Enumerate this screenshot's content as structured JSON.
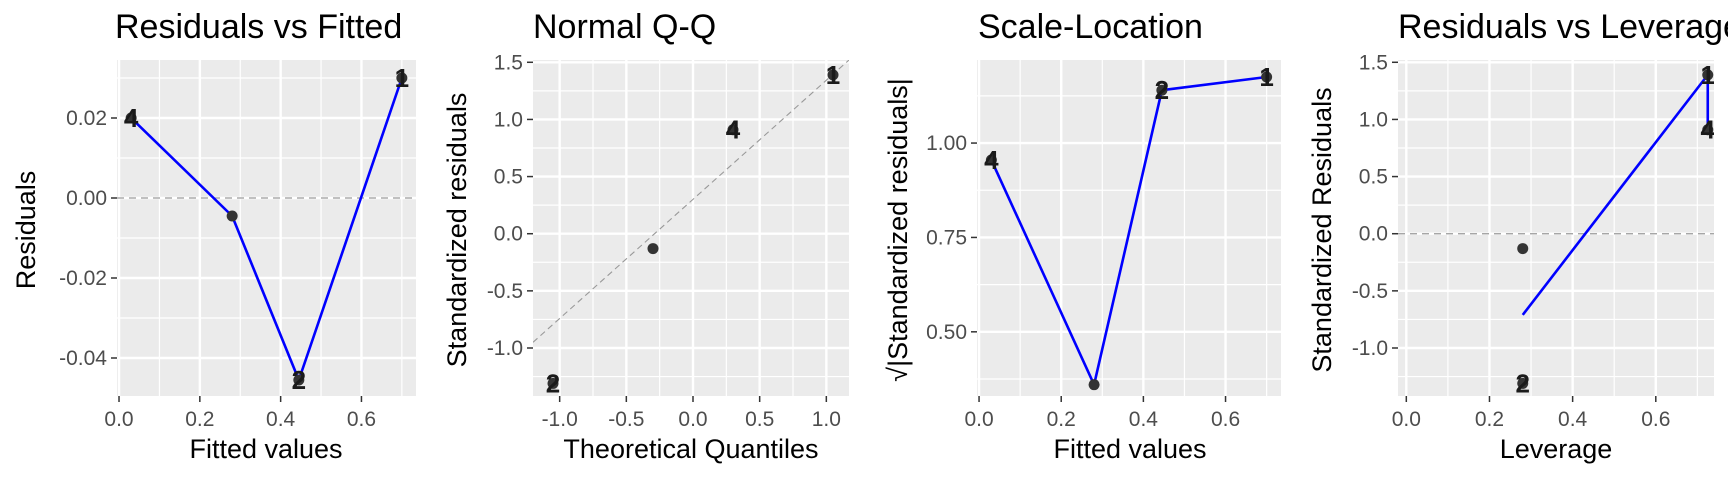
{
  "chart_data": [
    {
      "type": "scatter",
      "title": "Residuals vs Fitted",
      "xlabel": "Fitted values",
      "ylabel": "Residuals",
      "xlim": [
        -0.005,
        0.735
      ],
      "ylim": [
        -0.0495,
        0.0345
      ],
      "xticks": [
        0.0,
        0.2,
        0.4,
        0.6
      ],
      "xtick_labels": [
        "0.0",
        "0.2",
        "0.4",
        "0.6"
      ],
      "yticks": [
        -0.04,
        -0.02,
        0.0,
        0.02
      ],
      "ytick_labels": [
        "-0.04",
        "-0.02",
        "0.00",
        "0.02"
      ],
      "points": [
        {
          "label": "4",
          "x": 0.03,
          "y": 0.02
        },
        {
          "label": "",
          "x": 0.28,
          "y": -0.0045
        },
        {
          "label": "2",
          "x": 0.445,
          "y": -0.0455
        },
        {
          "label": "1",
          "x": 0.7,
          "y": 0.03
        }
      ],
      "smooth_line": {
        "color": "#0000ff",
        "points": [
          [
            0.03,
            0.02
          ],
          [
            0.28,
            -0.0045
          ],
          [
            0.445,
            -0.0455
          ],
          [
            0.7,
            0.03
          ]
        ]
      },
      "ref_line": {
        "kind": "h",
        "value": 0.0
      },
      "grid": true
    },
    {
      "type": "scatter",
      "title": "Normal Q-Q",
      "xlabel": "Theoretical Quantiles",
      "ylabel": "Standardized residuals",
      "xlim": [
        -1.2,
        1.17
      ],
      "ylim": [
        -1.42,
        1.52
      ],
      "xticks": [
        -1.0,
        -0.5,
        0.0,
        0.5,
        1.0
      ],
      "xtick_labels": [
        "-1.0",
        "-0.5",
        "0.0",
        "0.5",
        "1.0"
      ],
      "yticks": [
        -1.0,
        -0.5,
        0.0,
        0.5,
        1.0,
        1.5
      ],
      "ytick_labels": [
        "-1.0",
        "-0.5",
        "0.0",
        "0.5",
        "1.0",
        "1.5"
      ],
      "points": [
        {
          "label": "2",
          "x": -1.05,
          "y": -1.31
        },
        {
          "label": "",
          "x": -0.3,
          "y": -0.13
        },
        {
          "label": "4",
          "x": 0.3,
          "y": 0.91
        },
        {
          "label": "1",
          "x": 1.05,
          "y": 1.39
        }
      ],
      "ref_line": {
        "kind": "diag",
        "x0": -1.2,
        "y0": -0.95,
        "x1": 1.17,
        "y1": 1.52,
        "color": "#999999"
      },
      "grid": true
    },
    {
      "type": "scatter",
      "title": "Scale-Location",
      "xlabel": "Fitted values",
      "ylabel": "√|Standardized residuals|",
      "xlim": [
        -0.005,
        0.735
      ],
      "ylim": [
        0.33,
        1.22
      ],
      "xticks": [
        0.0,
        0.2,
        0.4,
        0.6
      ],
      "xtick_labels": [
        "0.0",
        "0.2",
        "0.4",
        "0.6"
      ],
      "yticks": [
        0.5,
        0.75,
        1.0
      ],
      "ytick_labels": [
        "0.50",
        "0.75",
        "1.00"
      ],
      "points": [
        {
          "label": "4",
          "x": 0.03,
          "y": 0.955
        },
        {
          "label": "",
          "x": 0.28,
          "y": 0.36
        },
        {
          "label": "2",
          "x": 0.445,
          "y": 1.14
        },
        {
          "label": "1",
          "x": 0.7,
          "y": 1.175
        }
      ],
      "smooth_line": {
        "color": "#0000ff",
        "points": [
          [
            0.03,
            0.955
          ],
          [
            0.28,
            0.36
          ],
          [
            0.445,
            1.14
          ],
          [
            0.7,
            1.175
          ]
        ]
      },
      "grid": true
    },
    {
      "type": "scatter",
      "title": "Residuals vs Leverage",
      "xlabel": "Leverage",
      "ylabel": "Standardized Residuals",
      "xlim": [
        -0.02,
        0.74
      ],
      "ylim": [
        -1.42,
        1.52
      ],
      "xticks": [
        0.0,
        0.2,
        0.4,
        0.6
      ],
      "xtick_labels": [
        "0.0",
        "0.2",
        "0.4",
        "0.6"
      ],
      "yticks": [
        -1.0,
        -0.5,
        0.0,
        0.5,
        1.0,
        1.5
      ],
      "ytick_labels": [
        "-1.0",
        "-0.5",
        "0.0",
        "0.5",
        "1.0",
        "1.5"
      ],
      "points": [
        {
          "label": "",
          "x": 0.28,
          "y": -0.13
        },
        {
          "label": "2",
          "x": 0.28,
          "y": -1.31
        },
        {
          "label": "1",
          "x": 0.725,
          "y": 1.39
        },
        {
          "label": "4",
          "x": 0.725,
          "y": 0.91
        }
      ],
      "smooth_line": {
        "color": "#0000ff",
        "points": [
          [
            0.28,
            -0.71
          ],
          [
            0.725,
            1.39
          ],
          [
            0.725,
            0.91
          ]
        ]
      },
      "ref_line": {
        "kind": "h",
        "value": 0.0
      },
      "grid": true
    }
  ]
}
